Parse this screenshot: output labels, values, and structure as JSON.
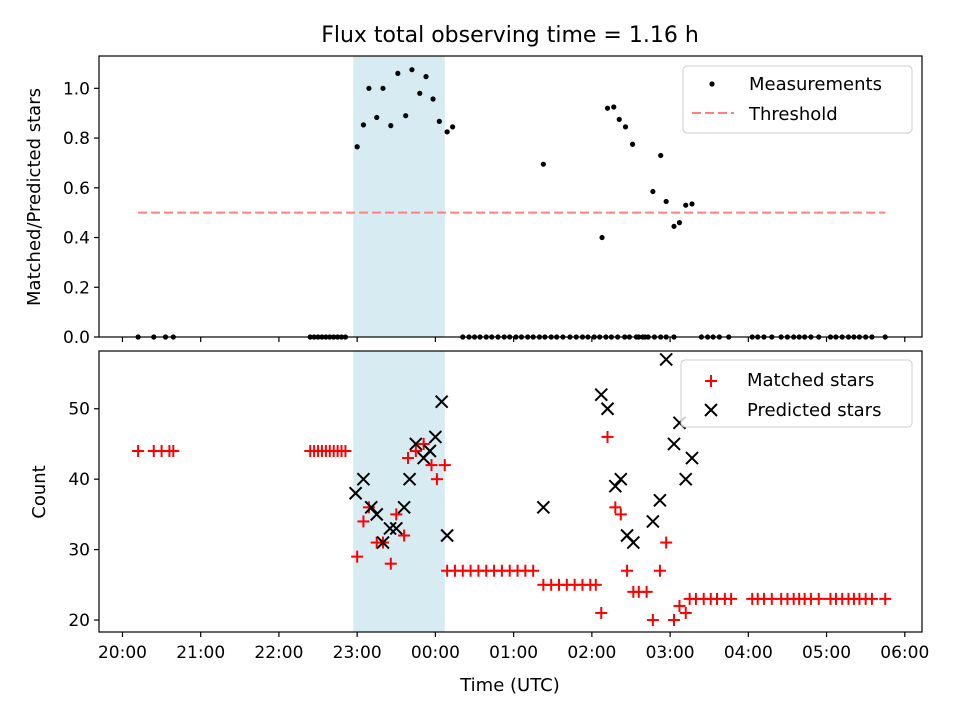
{
  "chart_data": [
    {
      "type": "scatter",
      "title": "Flux total observing time = 1.16 h",
      "ylabel": "Matched/Predicted stars",
      "xlabel": "",
      "x_unit": "hours since 20:00 UTC",
      "xlim": [
        -0.3,
        10.22
      ],
      "ylim": [
        0,
        1.13
      ],
      "yticks": [
        0,
        0.2,
        0.4,
        0.6,
        0.8,
        1.0
      ],
      "ytick_labels": [
        "0.0",
        "0.2",
        "0.4",
        "0.6",
        "0.8",
        "1.0"
      ],
      "highlight_span": [
        2.95,
        4.12
      ],
      "highlight_color": "#add8e6",
      "legend_position": "top-right",
      "series": [
        {
          "name": "Measurements",
          "marker": "dot",
          "color": "#000000",
          "points": [
            [
              0.2,
              0
            ],
            [
              0.4,
              0
            ],
            [
              0.55,
              0
            ],
            [
              0.65,
              0
            ],
            [
              2.4,
              0
            ],
            [
              2.45,
              0
            ],
            [
              2.5,
              0
            ],
            [
              2.55,
              0
            ],
            [
              2.6,
              0
            ],
            [
              2.65,
              0
            ],
            [
              2.7,
              0
            ],
            [
              2.75,
              0
            ],
            [
              2.8,
              0
            ],
            [
              2.85,
              0
            ],
            [
              3.0,
              0.765
            ],
            [
              3.08,
              0.853
            ],
            [
              3.15,
              1.0
            ],
            [
              3.25,
              0.883
            ],
            [
              3.33,
              1.0
            ],
            [
              3.43,
              0.85
            ],
            [
              3.52,
              1.06
            ],
            [
              3.62,
              0.89
            ],
            [
              3.7,
              1.075
            ],
            [
              3.8,
              0.98
            ],
            [
              3.88,
              1.047
            ],
            [
              3.97,
              0.957
            ],
            [
              4.05,
              0.867
            ],
            [
              4.15,
              0.825
            ],
            [
              4.22,
              0.845
            ],
            [
              4.35,
              0
            ],
            [
              4.43,
              0
            ],
            [
              4.5,
              0
            ],
            [
              4.57,
              0
            ],
            [
              4.65,
              0
            ],
            [
              4.72,
              0
            ],
            [
              4.8,
              0
            ],
            [
              4.88,
              0
            ],
            [
              4.95,
              0
            ],
            [
              5.03,
              0
            ],
            [
              5.1,
              0
            ],
            [
              5.18,
              0
            ],
            [
              5.25,
              0
            ],
            [
              5.33,
              0
            ],
            [
              5.4,
              0
            ],
            [
              5.48,
              0
            ],
            [
              5.55,
              0
            ],
            [
              5.63,
              0
            ],
            [
              5.72,
              0
            ],
            [
              5.8,
              0
            ],
            [
              5.88,
              0
            ],
            [
              5.95,
              0
            ],
            [
              6.03,
              0
            ],
            [
              6.1,
              0
            ],
            [
              6.18,
              0
            ],
            [
              6.25,
              0
            ],
            [
              6.33,
              0
            ],
            [
              6.42,
              0
            ],
            [
              6.48,
              0
            ],
            [
              6.57,
              0
            ],
            [
              6.65,
              0
            ],
            [
              6.72,
              0
            ],
            [
              6.8,
              0
            ],
            [
              6.88,
              0
            ],
            [
              6.95,
              0
            ],
            [
              7.05,
              0
            ],
            [
              5.38,
              0.695
            ],
            [
              6.13,
              0.4
            ],
            [
              6.2,
              0.92
            ],
            [
              6.28,
              0.925
            ],
            [
              6.35,
              0.875
            ],
            [
              6.43,
              0.845
            ],
            [
              6.52,
              0.775
            ],
            [
              6.6,
              0
            ],
            [
              6.68,
              0
            ],
            [
              6.78,
              0.585
            ],
            [
              6.88,
              0.73
            ],
            [
              6.95,
              0.545
            ],
            [
              7.05,
              0.445
            ],
            [
              7.12,
              0.46
            ],
            [
              7.2,
              0.53
            ],
            [
              7.28,
              0.535
            ],
            [
              7.4,
              0
            ],
            [
              7.48,
              0
            ],
            [
              7.55,
              0
            ],
            [
              7.63,
              0
            ],
            [
              7.75,
              0
            ],
            [
              8.05,
              0
            ],
            [
              8.12,
              0
            ],
            [
              8.2,
              0
            ],
            [
              8.3,
              0
            ],
            [
              8.42,
              0
            ],
            [
              8.5,
              0
            ],
            [
              8.58,
              0
            ],
            [
              8.65,
              0
            ],
            [
              8.72,
              0
            ],
            [
              8.8,
              0
            ],
            [
              8.9,
              0
            ],
            [
              9.05,
              0
            ],
            [
              9.12,
              0
            ],
            [
              9.2,
              0
            ],
            [
              9.28,
              0
            ],
            [
              9.35,
              0
            ],
            [
              9.42,
              0
            ],
            [
              9.5,
              0
            ],
            [
              9.58,
              0
            ],
            [
              9.75,
              0
            ]
          ]
        },
        {
          "name": "Threshold",
          "marker": "dashed-line",
          "color": "#ff7f7f",
          "points": [
            [
              0.2,
              0.5
            ],
            [
              9.75,
              0.5
            ]
          ]
        }
      ]
    },
    {
      "type": "scatter",
      "title": "",
      "ylabel": "Count",
      "xlabel": "Time (UTC)",
      "x_unit": "hours since 20:00 UTC",
      "xlim": [
        -0.3,
        10.22
      ],
      "ylim": [
        18.3,
        58.2
      ],
      "yticks": [
        20,
        30,
        40,
        50
      ],
      "ytick_labels": [
        "20",
        "30",
        "40",
        "50"
      ],
      "xticks": [
        0,
        1,
        2,
        3,
        4,
        5,
        6,
        7,
        8,
        9,
        10
      ],
      "xtick_labels": [
        "20:00",
        "21:00",
        "22:00",
        "23:00",
        "00:00",
        "01:00",
        "02:00",
        "03:00",
        "04:00",
        "05:00",
        "06:00"
      ],
      "highlight_span": [
        2.95,
        4.12
      ],
      "highlight_color": "#add8e6",
      "legend_position": "top-right",
      "series": [
        {
          "name": "Matched stars",
          "marker": "plus",
          "color": "#ff0000",
          "points": [
            [
              0.2,
              44
            ],
            [
              0.4,
              44
            ],
            [
              0.5,
              44
            ],
            [
              0.6,
              44
            ],
            [
              0.65,
              44
            ],
            [
              2.4,
              44
            ],
            [
              2.45,
              44
            ],
            [
              2.5,
              44
            ],
            [
              2.55,
              44
            ],
            [
              2.6,
              44
            ],
            [
              2.65,
              44
            ],
            [
              2.7,
              44
            ],
            [
              2.75,
              44
            ],
            [
              2.8,
              44
            ],
            [
              2.85,
              44
            ],
            [
              3.0,
              29
            ],
            [
              3.08,
              34
            ],
            [
              3.15,
              36
            ],
            [
              3.25,
              31
            ],
            [
              3.33,
              31
            ],
            [
              3.43,
              28
            ],
            [
              3.5,
              35
            ],
            [
              3.6,
              32
            ],
            [
              3.65,
              43
            ],
            [
              3.75,
              44
            ],
            [
              3.85,
              45
            ],
            [
              3.95,
              42
            ],
            [
              4.02,
              40
            ],
            [
              4.12,
              42
            ],
            [
              4.15,
              27
            ],
            [
              4.25,
              27
            ],
            [
              4.35,
              27
            ],
            [
              4.45,
              27
            ],
            [
              4.55,
              27
            ],
            [
              4.65,
              27
            ],
            [
              4.75,
              27
            ],
            [
              4.85,
              27
            ],
            [
              4.95,
              27
            ],
            [
              5.05,
              27
            ],
            [
              5.15,
              27
            ],
            [
              5.25,
              27
            ],
            [
              5.38,
              25
            ],
            [
              5.48,
              25
            ],
            [
              5.58,
              25
            ],
            [
              5.68,
              25
            ],
            [
              5.78,
              25
            ],
            [
              5.88,
              25
            ],
            [
              5.98,
              25
            ],
            [
              6.05,
              25
            ],
            [
              6.12,
              21
            ],
            [
              6.2,
              46
            ],
            [
              6.3,
              36
            ],
            [
              6.37,
              35
            ],
            [
              6.45,
              27
            ],
            [
              6.53,
              24
            ],
            [
              6.6,
              24
            ],
            [
              6.7,
              24
            ],
            [
              6.78,
              20
            ],
            [
              6.87,
              27
            ],
            [
              6.95,
              31
            ],
            [
              7.05,
              20
            ],
            [
              7.12,
              22
            ],
            [
              7.2,
              21
            ],
            [
              7.25,
              23
            ],
            [
              7.33,
              23
            ],
            [
              7.43,
              23
            ],
            [
              7.52,
              23
            ],
            [
              7.6,
              23
            ],
            [
              7.7,
              23
            ],
            [
              7.78,
              23
            ],
            [
              8.05,
              23
            ],
            [
              8.12,
              23
            ],
            [
              8.2,
              23
            ],
            [
              8.3,
              23
            ],
            [
              8.42,
              23
            ],
            [
              8.5,
              23
            ],
            [
              8.58,
              23
            ],
            [
              8.65,
              23
            ],
            [
              8.72,
              23
            ],
            [
              8.8,
              23
            ],
            [
              8.9,
              23
            ],
            [
              9.05,
              23
            ],
            [
              9.12,
              23
            ],
            [
              9.2,
              23
            ],
            [
              9.28,
              23
            ],
            [
              9.35,
              23
            ],
            [
              9.42,
              23
            ],
            [
              9.5,
              23
            ],
            [
              9.58,
              23
            ],
            [
              9.75,
              23
            ]
          ]
        },
        {
          "name": "Predicted stars",
          "marker": "x",
          "color": "#000000",
          "points": [
            [
              2.98,
              38
            ],
            [
              3.08,
              40
            ],
            [
              3.18,
              36
            ],
            [
              3.25,
              35
            ],
            [
              3.33,
              31
            ],
            [
              3.42,
              33
            ],
            [
              3.5,
              33
            ],
            [
              3.6,
              36
            ],
            [
              3.67,
              40
            ],
            [
              3.75,
              45
            ],
            [
              3.85,
              43
            ],
            [
              3.93,
              44
            ],
            [
              4.0,
              46
            ],
            [
              4.08,
              51
            ],
            [
              4.15,
              32
            ],
            [
              5.38,
              36
            ],
            [
              6.12,
              52
            ],
            [
              6.2,
              50
            ],
            [
              6.3,
              39
            ],
            [
              6.37,
              40
            ],
            [
              6.45,
              32
            ],
            [
              6.53,
              31
            ],
            [
              6.78,
              34
            ],
            [
              6.87,
              37
            ],
            [
              6.95,
              57
            ],
            [
              7.05,
              45
            ],
            [
              7.12,
              48
            ],
            [
              7.2,
              40
            ],
            [
              7.28,
              43
            ]
          ]
        }
      ]
    }
  ]
}
